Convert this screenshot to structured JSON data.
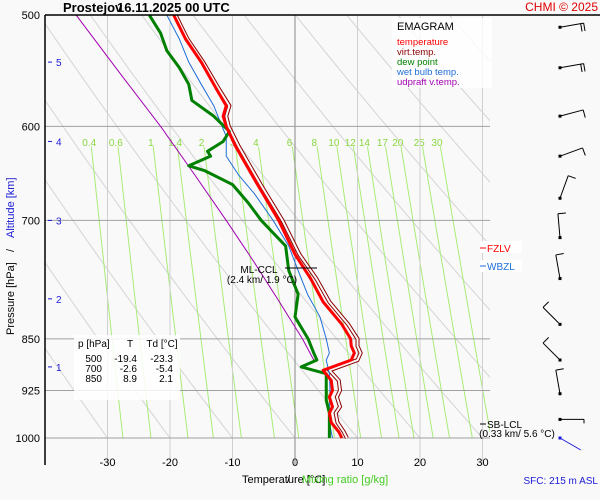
{
  "header": {
    "station": "Prostejov",
    "datetime": "16.11.2025 00 UTC",
    "copyright": "CHMI © 2025"
  },
  "legend": {
    "title": "EMAGRAM",
    "items": [
      {
        "label": "temperature",
        "color": "#ff0000"
      },
      {
        "label": "virt.temp.",
        "color": "#8b0000"
      },
      {
        "label": "dew point",
        "color": "#008000"
      },
      {
        "label": "wet bulb temp.",
        "color": "#1e6fd9"
      },
      {
        "label": "udpraft v.temp.",
        "color": "#a000b0"
      }
    ]
  },
  "levels_table": {
    "headers": [
      "p [hPa]",
      "T",
      "Td [°C]"
    ],
    "rows": [
      [
        "500",
        "-19.4",
        "-23.3"
      ],
      [
        "700",
        "-2.6",
        "-5.4"
      ],
      [
        "850",
        "8.9",
        "2.1"
      ]
    ]
  },
  "annotations": {
    "ml_ccl": {
      "label": "ML-CCL",
      "detail": "(2.4 km/ 1.9 °C)",
      "pressure": 765,
      "temp": 1.9
    },
    "sb_lcl": {
      "label": "SB-LCL",
      "detail": "(0.33 km/ 5.6 °C)",
      "pressure": 978
    },
    "fzlv": {
      "label": "FZLV",
      "color": "#ff0000"
    },
    "wbzl": {
      "label": "WBZL",
      "color": "#1e6fd9"
    },
    "surface": "SFC: 215 m ASL"
  },
  "chart_data": {
    "type": "line",
    "title": "Prostejov 16.11.2025 00 UTC",
    "xlabel": "Temperature [°C]",
    "xlabel_secondary": "Mixing ratio [g/kg]",
    "ylabel": "Pressure [hPa]",
    "ylabel_secondary": "Altitude [km]",
    "xlim": [
      -38,
      33
    ],
    "ylim": [
      1000,
      500
    ],
    "x_ticks": [
      -30,
      -20,
      -10,
      0,
      10,
      20,
      30
    ],
    "x_tick_labels": [
      "-30",
      "-20",
      "-10",
      "0",
      "10",
      "20",
      "30"
    ],
    "y_ticks": [
      500,
      600,
      700,
      850,
      925,
      1000
    ],
    "y_tick_labels": [
      "500",
      "600",
      "700",
      "850",
      "925",
      "1000"
    ],
    "altitude_ticks": [
      {
        "km": "1",
        "pressure": 890
      },
      {
        "km": "2",
        "pressure": 796
      },
      {
        "km": "3",
        "pressure": 700
      },
      {
        "km": "4",
        "pressure": 615
      },
      {
        "km": "5",
        "pressure": 540
      }
    ],
    "mixing_ratio_labels": [
      "0.4",
      "0.6",
      "1",
      "1.4",
      "2",
      "3",
      "4",
      "6",
      "8",
      "10",
      "12",
      "14",
      "17",
      "20",
      "25",
      "30"
    ],
    "mixing_ratio_values": [
      0.4,
      0.6,
      1,
      1.4,
      2,
      3,
      4,
      6,
      8,
      10,
      12,
      14,
      17,
      20,
      25,
      30
    ],
    "grid": true,
    "series": [
      {
        "name": "temperature",
        "color": "#ff0000",
        "points": [
          [
            1000,
            7.5
          ],
          [
            990,
            7.0
          ],
          [
            975,
            5.8
          ],
          [
            960,
            5.5
          ],
          [
            950,
            6.0
          ],
          [
            935,
            5.5
          ],
          [
            925,
            6.0
          ],
          [
            910,
            5.8
          ],
          [
            895,
            4.5
          ],
          [
            880,
            9.0
          ],
          [
            870,
            9.5
          ],
          [
            860,
            9.0
          ],
          [
            850,
            8.9
          ],
          [
            830,
            7.5
          ],
          [
            800,
            4.5
          ],
          [
            770,
            2.5
          ],
          [
            740,
            0.0
          ],
          [
            700,
            -2.6
          ],
          [
            660,
            -6.0
          ],
          [
            620,
            -9.5
          ],
          [
            600,
            -11.0
          ],
          [
            590,
            -11.5
          ],
          [
            580,
            -11.0
          ],
          [
            565,
            -12.5
          ],
          [
            540,
            -15.0
          ],
          [
            520,
            -17.5
          ],
          [
            500,
            -19.4
          ]
        ]
      },
      {
        "name": "virt.temp.",
        "color": "#8b0000",
        "points": [
          [
            1000,
            8.3
          ],
          [
            990,
            7.8
          ],
          [
            975,
            6.8
          ],
          [
            960,
            6.5
          ],
          [
            950,
            7.2
          ],
          [
            935,
            6.7
          ],
          [
            925,
            7.2
          ],
          [
            910,
            7.0
          ],
          [
            895,
            5.5
          ],
          [
            880,
            10.0
          ],
          [
            870,
            10.5
          ],
          [
            860,
            10.0
          ],
          [
            850,
            10.0
          ],
          [
            830,
            8.5
          ],
          [
            800,
            5.5
          ],
          [
            770,
            3.4
          ],
          [
            740,
            0.7
          ],
          [
            700,
            -2.0
          ],
          [
            660,
            -5.5
          ],
          [
            620,
            -9.0
          ],
          [
            600,
            -10.6
          ],
          [
            590,
            -11.0
          ],
          [
            580,
            -10.5
          ],
          [
            565,
            -12.1
          ],
          [
            540,
            -14.7
          ],
          [
            520,
            -17.2
          ],
          [
            500,
            -19.1
          ]
        ]
      },
      {
        "name": "dew point",
        "color": "#008000",
        "points": [
          [
            1000,
            5.5
          ],
          [
            980,
            5.5
          ],
          [
            960,
            5.5
          ],
          [
            940,
            5.0
          ],
          [
            925,
            5.0
          ],
          [
            900,
            5.0
          ],
          [
            890,
            1.0
          ],
          [
            880,
            3.5
          ],
          [
            870,
            3.0
          ],
          [
            850,
            2.1
          ],
          [
            820,
            0.0
          ],
          [
            790,
            0.5
          ],
          [
            760,
            -1.0
          ],
          [
            730,
            -1.5
          ],
          [
            700,
            -5.4
          ],
          [
            680,
            -7.5
          ],
          [
            660,
            -10.0
          ],
          [
            645,
            -14.5
          ],
          [
            640,
            -17.0
          ],
          [
            630,
            -13.5
          ],
          [
            625,
            -14.0
          ],
          [
            615,
            -11.5
          ],
          [
            605,
            -10.5
          ],
          [
            590,
            -13.0
          ],
          [
            575,
            -16.5
          ],
          [
            560,
            -17.0
          ],
          [
            545,
            -18.5
          ],
          [
            530,
            -20.5
          ],
          [
            515,
            -21.5
          ],
          [
            500,
            -23.3
          ]
        ]
      },
      {
        "name": "wet bulb temp.",
        "color": "#1e6fd9",
        "points": [
          [
            1000,
            6.0
          ],
          [
            975,
            5.5
          ],
          [
            950,
            5.5
          ],
          [
            925,
            5.6
          ],
          [
            900,
            5.5
          ],
          [
            880,
            5.0
          ],
          [
            870,
            5.5
          ],
          [
            850,
            5.0
          ],
          [
            820,
            4.0
          ],
          [
            790,
            2.0
          ],
          [
            760,
            0.5
          ],
          [
            730,
            -1.0
          ],
          [
            700,
            -3.5
          ],
          [
            670,
            -6.5
          ],
          [
            650,
            -9.0
          ],
          [
            630,
            -11.0
          ],
          [
            610,
            -11.0
          ],
          [
            595,
            -12.0
          ],
          [
            580,
            -13.0
          ],
          [
            560,
            -15.0
          ],
          [
            540,
            -17.0
          ],
          [
            520,
            -18.5
          ],
          [
            500,
            -20.5
          ]
        ]
      },
      {
        "name": "udpraft v.temp.",
        "color": "#a000b0",
        "points": [
          [
            880,
            3.0
          ],
          [
            850,
            1.2
          ],
          [
            800,
            -2.5
          ],
          [
            750,
            -6.5
          ],
          [
            700,
            -11.0
          ],
          [
            650,
            -16.0
          ],
          [
            600,
            -21.5
          ],
          [
            550,
            -28.0
          ],
          [
            500,
            -35.0
          ]
        ]
      }
    ],
    "wind_barbs": [
      {
        "pressure": 510,
        "dir": 260,
        "kt": 20
      },
      {
        "pressure": 545,
        "dir": 260,
        "kt": 20
      },
      {
        "pressure": 590,
        "dir": 255,
        "kt": 10
      },
      {
        "pressure": 630,
        "dir": 250,
        "kt": 10
      },
      {
        "pressure": 675,
        "dir": 200,
        "kt": 10
      },
      {
        "pressure": 720,
        "dir": 175,
        "kt": 10
      },
      {
        "pressure": 770,
        "dir": 170,
        "kt": 10
      },
      {
        "pressure": 830,
        "dir": 135,
        "kt": 10
      },
      {
        "pressure": 880,
        "dir": 135,
        "kt": 10
      },
      {
        "pressure": 930,
        "dir": 170,
        "kt": 10
      },
      {
        "pressure": 970,
        "dir": 270,
        "kt": 5
      },
      {
        "pressure": 1000,
        "dir": 300,
        "kt": 0,
        "surface": true
      }
    ]
  }
}
